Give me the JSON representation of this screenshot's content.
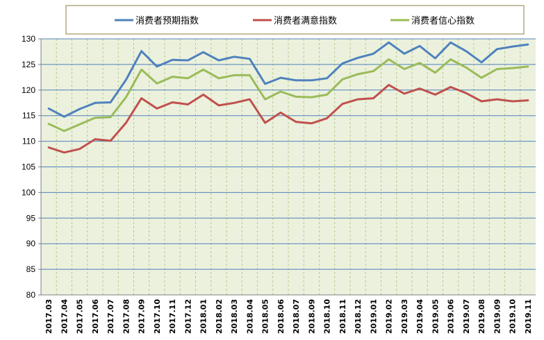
{
  "chart_data": {
    "type": "line",
    "title": "",
    "xlabel": "",
    "ylabel": "",
    "ylim": [
      80,
      130
    ],
    "yticks": [
      "80",
      "85",
      "90",
      "95",
      "100",
      "105",
      "110",
      "115",
      "120",
      "125",
      "130"
    ],
    "grid": true,
    "legend_position": "top",
    "categories": [
      "2017.03",
      "2017.04",
      "2017.05",
      "2017.06",
      "2017.07",
      "2017.08",
      "2017.09",
      "2017.10",
      "2017.11",
      "2017.12",
      "2018.01",
      "2018.02",
      "2018.03",
      "2018.04",
      "2018.05",
      "2018.06",
      "2018.07",
      "2018.09",
      "2018.10",
      "2018.11",
      "2018.12",
      "2019.01",
      "2019.02",
      "2019.03",
      "2019.04",
      "2019.05",
      "2019.06",
      "2019.07",
      "2019.08",
      "2019.09",
      "2019.10",
      "2019.11"
    ],
    "series": [
      {
        "name": "消费者预期指数",
        "color": "#4f81bd",
        "values": [
          116.4,
          114.8,
          116.3,
          117.5,
          117.6,
          122.0,
          127.6,
          124.6,
          125.9,
          125.8,
          127.4,
          125.8,
          126.5,
          126.1,
          121.2,
          122.4,
          121.9,
          121.9,
          122.3,
          125.2,
          126.3,
          127.1,
          129.3,
          127.1,
          128.6,
          126.2,
          129.3,
          127.6,
          125.4,
          128.0,
          128.5,
          128.9
        ]
      },
      {
        "name": "消费者满意指数",
        "color": "#c0504d",
        "values": [
          108.8,
          107.8,
          108.5,
          110.4,
          110.1,
          113.6,
          118.4,
          116.4,
          117.6,
          117.2,
          119.1,
          117.0,
          117.5,
          118.2,
          113.6,
          115.6,
          113.8,
          113.5,
          114.5,
          117.3,
          118.2,
          118.4,
          121.0,
          119.3,
          120.3,
          119.1,
          120.6,
          119.4,
          117.8,
          118.2,
          117.8,
          118.0
        ]
      },
      {
        "name": "消费者信心指数",
        "color": "#9bbb59",
        "values": [
          113.4,
          112.0,
          113.3,
          114.6,
          114.7,
          118.6,
          124.0,
          121.3,
          122.6,
          122.3,
          124.0,
          122.3,
          122.9,
          122.9,
          118.2,
          119.7,
          118.7,
          118.6,
          119.1,
          122.1,
          123.1,
          123.7,
          126.0,
          124.1,
          125.3,
          123.4,
          126.0,
          124.4,
          122.4,
          124.1,
          124.3,
          124.6
        ]
      }
    ]
  }
}
